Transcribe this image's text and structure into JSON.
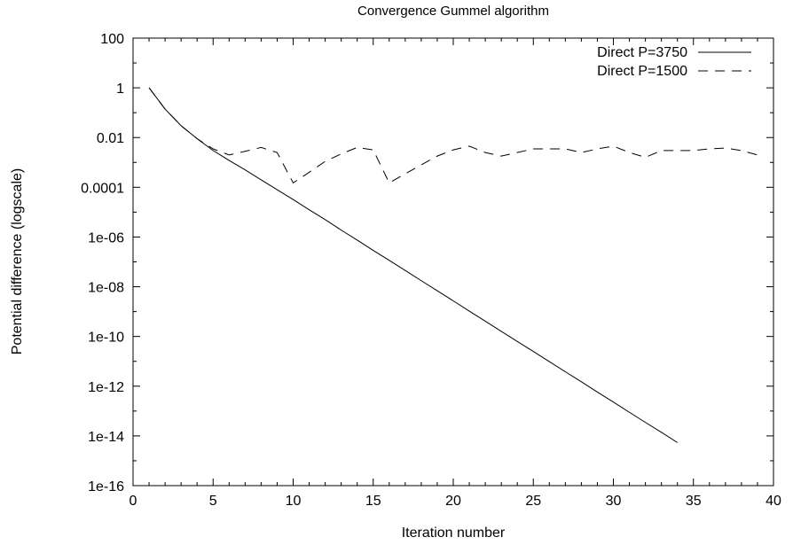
{
  "chart_data": {
    "type": "line",
    "title": "Convergence Gummel algorithm",
    "xlabel": "Iteration number",
    "ylabel": "Potential difference (logscale)",
    "xlim": [
      0,
      40
    ],
    "ylim": [
      1e-16,
      100
    ],
    "yscale": "log",
    "grid": false,
    "legend_position": "top-right",
    "xticks": [
      "0",
      "5",
      "10",
      "15",
      "20",
      "25",
      "30",
      "35",
      "40"
    ],
    "yticks": [
      "1e-16",
      "1e-14",
      "1e-12",
      "1e-10",
      "1e-08",
      "1e-06",
      "0.0001",
      "0.01",
      "1",
      "100"
    ],
    "series": [
      {
        "name": "Direct P=3750",
        "style": "solid",
        "x": [
          1,
          2,
          3,
          4,
          5,
          6,
          7,
          8,
          9,
          10,
          11,
          12,
          13,
          14,
          15,
          16,
          17,
          18,
          19,
          20,
          21,
          22,
          23,
          24,
          25,
          26,
          27,
          28,
          29,
          30,
          31,
          32,
          33,
          34
        ],
        "y": [
          1,
          0.14,
          0.03,
          0.009,
          0.003,
          0.0012,
          0.0005,
          0.0002,
          8e-05,
          3.2e-05,
          1.25e-05,
          5e-06,
          1.9e-06,
          7.5e-07,
          2.9e-07,
          1.15e-07,
          4.5e-08,
          1.75e-08,
          6.9e-09,
          2.7e-09,
          1.05e-09,
          4.1e-10,
          1.6e-10,
          6.3e-11,
          2.5e-11,
          9.7e-12,
          3.8e-12,
          1.5e-12,
          5.8e-13,
          2.3e-13,
          8.9e-14,
          3.5e-14,
          1.4e-14,
          5.4e-15
        ]
      },
      {
        "name": "Direct P=1500",
        "style": "dashed",
        "x": [
          1,
          2,
          3,
          4,
          5,
          6,
          7,
          8,
          9,
          10,
          11,
          12,
          13,
          14,
          15,
          16,
          17,
          18,
          19,
          20,
          21,
          22,
          23,
          24,
          25,
          26,
          27,
          28,
          29,
          30,
          31,
          32,
          33,
          34,
          35,
          36,
          37,
          38,
          39
        ],
        "y": [
          1,
          0.14,
          0.03,
          0.009,
          0.0035,
          0.002,
          0.0028,
          0.004,
          0.0025,
          0.00015,
          0.0004,
          0.0011,
          0.0022,
          0.004,
          0.0032,
          0.00015,
          0.00035,
          0.0008,
          0.0018,
          0.0032,
          0.0045,
          0.0025,
          0.0018,
          0.0025,
          0.0035,
          0.0035,
          0.0035,
          0.0025,
          0.0035,
          0.0045,
          0.0025,
          0.0016,
          0.003,
          0.003,
          0.003,
          0.0035,
          0.0038,
          0.003,
          0.002
        ]
      }
    ]
  }
}
